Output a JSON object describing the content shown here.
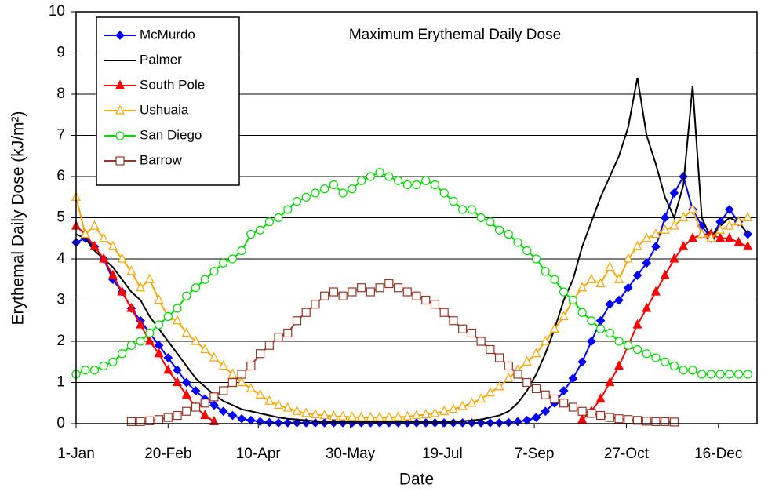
{
  "chart_data": {
    "type": "line",
    "title": "Maximum Erythemal Daily Dose",
    "x_label": "Date",
    "y_label": "Erythemal Daily Dose (kJ/m²)",
    "xlim": [
      1,
      371
    ],
    "xticks": [
      {
        "value": 1,
        "label": "1-Jan"
      },
      {
        "value": 51,
        "label": "20-Feb"
      },
      {
        "value": 100,
        "label": "10-Apr"
      },
      {
        "value": 150,
        "label": "30-May"
      },
      {
        "value": 200,
        "label": "19-Jul"
      },
      {
        "value": 250,
        "label": "7-Sep"
      },
      {
        "value": 300,
        "label": "27-Oct"
      },
      {
        "value": 350,
        "label": "16-Dec"
      }
    ],
    "ylim": [
      0,
      10
    ],
    "yticks": [
      0,
      1,
      2,
      3,
      4,
      5,
      6,
      7,
      8,
      9,
      10
    ],
    "grid": true,
    "legend": "upper-left",
    "x": [
      1,
      6,
      11,
      16,
      21,
      26,
      31,
      36,
      41,
      46,
      51,
      56,
      61,
      66,
      71,
      76,
      81,
      86,
      91,
      96,
      101,
      106,
      111,
      116,
      121,
      126,
      131,
      136,
      141,
      146,
      151,
      156,
      161,
      166,
      171,
      176,
      181,
      186,
      191,
      196,
      201,
      206,
      211,
      216,
      221,
      226,
      231,
      236,
      241,
      246,
      251,
      256,
      261,
      266,
      271,
      276,
      281,
      286,
      291,
      296,
      301,
      306,
      311,
      316,
      321,
      326,
      331,
      336,
      341,
      346,
      351,
      356,
      361,
      366
    ],
    "series": [
      {
        "name": "McMurdo",
        "color": "#0000ff",
        "marker": "diamond",
        "values": [
          4.4,
          4.5,
          4.3,
          4.0,
          3.5,
          3.2,
          2.8,
          2.5,
          2.2,
          1.9,
          1.6,
          1.3,
          1.0,
          0.8,
          0.6,
          0.45,
          0.3,
          0.2,
          0.12,
          0.08,
          0.05,
          0.03,
          0.02,
          0.02,
          0.02,
          0.02,
          0.02,
          0.02,
          0.02,
          0.02,
          0.02,
          0.02,
          0.02,
          0.02,
          0.02,
          0.02,
          0.02,
          0.02,
          0.02,
          0.02,
          0.02,
          0.02,
          0.02,
          0.02,
          0.02,
          0.02,
          0.02,
          0.03,
          0.05,
          0.08,
          0.15,
          0.3,
          0.5,
          0.8,
          1.1,
          1.5,
          2.0,
          2.5,
          2.9,
          3.0,
          3.3,
          3.6,
          3.9,
          4.3,
          5.0,
          5.6,
          6.0,
          5.2,
          4.8,
          4.5,
          4.9,
          5.2,
          4.9,
          4.6
        ]
      },
      {
        "name": "Palmer",
        "color": "#000000",
        "values": [
          4.6,
          4.5,
          4.2,
          4.0,
          3.8,
          3.5,
          3.2,
          3.0,
          2.6,
          2.3,
          2.0,
          1.7,
          1.4,
          1.1,
          0.9,
          0.7,
          0.55,
          0.45,
          0.35,
          0.3,
          0.25,
          0.2,
          0.15,
          0.12,
          0.1,
          0.08,
          0.06,
          0.05,
          0.05,
          0.05,
          0.05,
          0.05,
          0.05,
          0.05,
          0.05,
          0.05,
          0.05,
          0.05,
          0.05,
          0.05,
          0.05,
          0.05,
          0.06,
          0.08,
          0.1,
          0.15,
          0.2,
          0.3,
          0.5,
          0.8,
          1.2,
          1.7,
          2.3,
          3.0,
          3.5,
          4.3,
          4.9,
          5.5,
          6.0,
          6.5,
          7.2,
          8.4,
          7.0,
          6.3,
          5.5,
          5.0,
          5.8,
          8.2,
          5.0,
          4.5,
          4.8,
          5.0,
          4.9,
          4.6
        ]
      },
      {
        "name": "South Pole",
        "color": "#ff0000",
        "marker": "triangle-filled",
        "values": [
          4.8,
          4.6,
          4.3,
          4.0,
          3.6,
          3.2,
          2.8,
          2.4,
          2.0,
          1.7,
          1.3,
          1.0,
          0.7,
          0.4,
          0.2,
          0.05,
          null,
          null,
          null,
          null,
          null,
          null,
          null,
          null,
          null,
          null,
          null,
          null,
          null,
          null,
          null,
          null,
          null,
          null,
          null,
          null,
          null,
          null,
          null,
          null,
          null,
          null,
          null,
          null,
          null,
          null,
          null,
          null,
          null,
          null,
          null,
          null,
          null,
          null,
          null,
          0.1,
          0.3,
          0.6,
          1.0,
          1.4,
          1.9,
          2.4,
          2.8,
          3.2,
          3.6,
          4.0,
          4.3,
          4.5,
          4.6,
          4.6,
          4.5,
          4.5,
          4.4,
          4.3
        ]
      },
      {
        "name": "Ushuaia",
        "color": "#ffa500",
        "marker": "triangle-open",
        "values": [
          5.5,
          4.6,
          4.8,
          4.5,
          4.3,
          4.0,
          3.7,
          3.3,
          3.5,
          3.0,
          2.6,
          2.5,
          2.2,
          2.0,
          1.8,
          1.6,
          1.4,
          1.2,
          1.0,
          0.85,
          0.7,
          0.55,
          0.45,
          0.38,
          0.3,
          0.25,
          0.22,
          0.2,
          0.18,
          0.17,
          0.16,
          0.15,
          0.15,
          0.15,
          0.15,
          0.16,
          0.17,
          0.2,
          0.22,
          0.25,
          0.3,
          0.35,
          0.42,
          0.5,
          0.6,
          0.75,
          0.9,
          1.1,
          1.3,
          1.5,
          1.7,
          2.0,
          2.3,
          2.6,
          3.0,
          3.3,
          3.5,
          3.4,
          3.8,
          3.5,
          4.0,
          4.3,
          4.5,
          4.6,
          4.7,
          4.8,
          5.0,
          5.2,
          4.6,
          4.5,
          4.7,
          4.8,
          4.9,
          5.0
        ]
      },
      {
        "name": "San Diego",
        "color": "#00dd00",
        "marker": "circle-open",
        "values": [
          1.2,
          1.3,
          1.3,
          1.4,
          1.5,
          1.7,
          1.9,
          2.0,
          2.2,
          2.4,
          2.6,
          2.8,
          3.1,
          3.3,
          3.5,
          3.7,
          3.9,
          4.0,
          4.2,
          4.6,
          4.7,
          4.9,
          5.0,
          5.2,
          5.4,
          5.5,
          5.6,
          5.7,
          5.8,
          5.6,
          5.7,
          5.9,
          6.0,
          6.1,
          6.0,
          5.9,
          5.8,
          5.8,
          5.9,
          5.8,
          5.6,
          5.4,
          5.2,
          5.2,
          5.0,
          4.9,
          4.7,
          4.6,
          4.4,
          4.2,
          4.0,
          3.7,
          3.5,
          3.2,
          3.0,
          2.7,
          2.5,
          2.3,
          2.2,
          2.0,
          1.9,
          1.8,
          1.7,
          1.6,
          1.5,
          1.4,
          1.3,
          1.3,
          1.2,
          1.2,
          1.2,
          1.2,
          1.2,
          1.2
        ]
      },
      {
        "name": "Barrow",
        "color": "#993322",
        "marker": "square-open",
        "values": [
          null,
          null,
          null,
          null,
          null,
          null,
          0.05,
          0.05,
          0.07,
          0.1,
          0.15,
          0.2,
          0.3,
          0.4,
          0.5,
          0.65,
          0.8,
          1.0,
          1.2,
          1.4,
          1.7,
          1.9,
          2.1,
          2.2,
          2.5,
          2.7,
          2.9,
          3.1,
          3.2,
          3.1,
          3.2,
          3.3,
          3.2,
          3.3,
          3.4,
          3.3,
          3.2,
          3.1,
          3.0,
          2.9,
          2.7,
          2.5,
          2.3,
          2.2,
          2.0,
          1.8,
          1.6,
          1.4,
          1.2,
          1.0,
          0.85,
          0.7,
          0.6,
          0.5,
          0.4,
          0.3,
          0.25,
          0.2,
          0.15,
          0.12,
          0.1,
          0.08,
          0.06,
          0.05,
          0.05,
          0.04,
          null,
          null,
          null,
          null,
          null,
          null,
          null,
          null
        ]
      }
    ]
  }
}
